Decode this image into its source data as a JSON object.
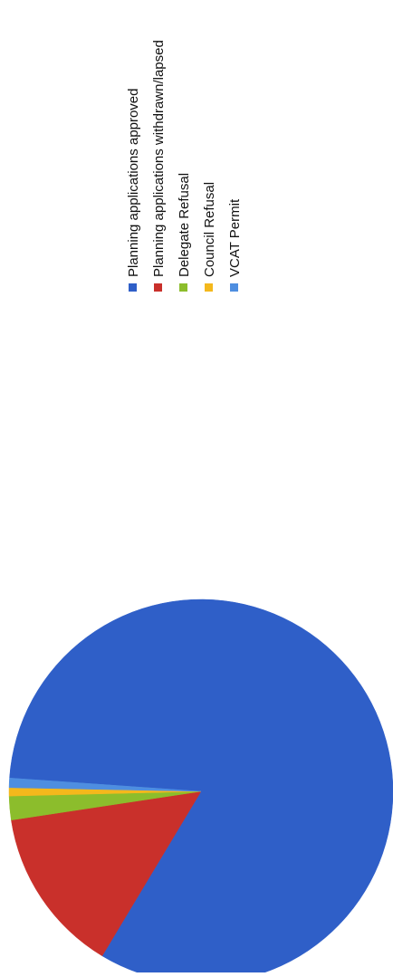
{
  "chart_data": {
    "type": "pie",
    "title": "",
    "categories": [
      "Planning applications approved",
      "Planning applications withdrawn/lapsed",
      "Delegate Refusal",
      "Council Refusal",
      "VCAT Permit"
    ],
    "values": [
      82.5,
      14.0,
      2.0,
      0.7,
      0.8
    ],
    "unit": "%",
    "colors": [
      "#2f5fc8",
      "#c9302b",
      "#8cbd2c",
      "#f4b81c",
      "#4e8ee0"
    ],
    "legend_position": "right",
    "orientation": "rotated 90° clockwise"
  }
}
